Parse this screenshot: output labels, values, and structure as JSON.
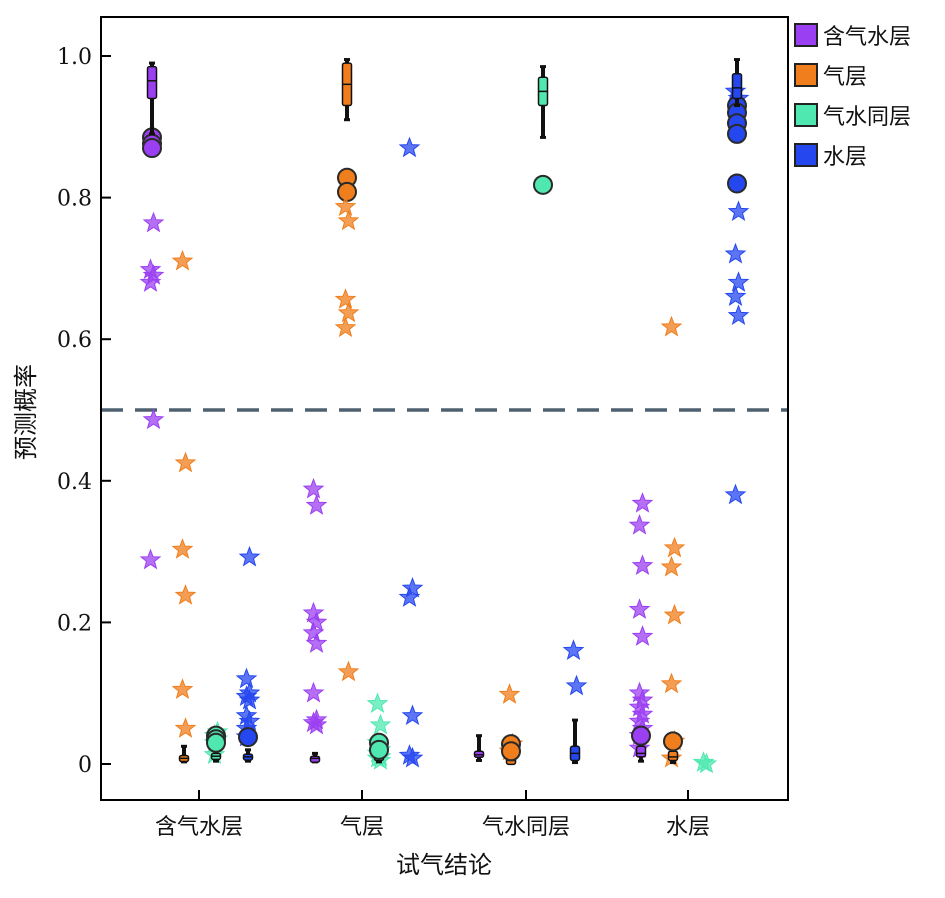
{
  "chart_data": {
    "type": "box",
    "xlabel": "试气结论",
    "ylabel": "预测概率",
    "categories": [
      "含气水层",
      "气层",
      "气水同层",
      "水层"
    ],
    "ylim": [
      -0.05,
      1.055
    ],
    "yticks": [
      {
        "value": 0,
        "label": "0"
      },
      {
        "value": 0.2,
        "label": "0.2"
      },
      {
        "value": 0.4,
        "label": "0.4"
      },
      {
        "value": 0.6,
        "label": "0.6"
      },
      {
        "value": 0.8,
        "label": "0.8"
      },
      {
        "value": 1.0,
        "label": "1.0"
      }
    ],
    "threshold": 0.5,
    "grid": false,
    "legend_position": "outside-top-right",
    "series": [
      {
        "name": "含气水层",
        "color": "#9b3ff2"
      },
      {
        "name": "气层",
        "color": "#f07e1c"
      },
      {
        "name": "气水同层",
        "color": "#4fe8b0"
      },
      {
        "name": "水层",
        "color": "#2547f0"
      }
    ],
    "boxes": [
      {
        "category": 0,
        "series": 0,
        "q1": 0.94,
        "median": 0.965,
        "q3": 0.985,
        "whislo": 0.89,
        "whishi": 0.99,
        "fliers": [
          0.885,
          0.876,
          0.87,
          0.764,
          0.698,
          0.69,
          0.68,
          0.486,
          0.288
        ]
      },
      {
        "category": 0,
        "series": 1,
        "q1": 0.005,
        "median": 0.008,
        "q3": 0.012,
        "whislo": 0.003,
        "whishi": 0.025,
        "fliers": [
          0.71,
          0.425,
          0.303,
          0.238,
          0.105,
          0.05
        ]
      },
      {
        "category": 0,
        "series": 2,
        "q1": 0.008,
        "median": 0.011,
        "q3": 0.015,
        "whislo": 0.004,
        "whishi": 0.02,
        "fliers": [
          0.013,
          0.045,
          0.04,
          0.035,
          0.03
        ]
      },
      {
        "category": 0,
        "series": 3,
        "q1": 0.007,
        "median": 0.01,
        "q3": 0.014,
        "whislo": 0.004,
        "whishi": 0.02,
        "fliers": [
          0.038,
          0.292,
          0.12,
          0.1,
          0.095,
          0.09,
          0.068,
          0.06,
          0.05
        ]
      },
      {
        "category": 1,
        "series": 0,
        "q1": 0.005,
        "median": 0.008,
        "q3": 0.011,
        "whislo": 0.003,
        "whishi": 0.015,
        "fliers": [
          0.388,
          0.365,
          0.213,
          0.2,
          0.185,
          0.17,
          0.1,
          0.062,
          0.058,
          0.055
        ]
      },
      {
        "category": 1,
        "series": 1,
        "q1": 0.93,
        "median": 0.96,
        "q3": 0.99,
        "whislo": 0.91,
        "whishi": 0.995,
        "fliers": [
          0.828,
          0.808,
          0.787,
          0.767,
          0.656,
          0.637,
          0.616,
          0.13
        ]
      },
      {
        "category": 1,
        "series": 2,
        "q1": 0.005,
        "median": 0.01,
        "q3": 0.015,
        "whislo": 0.003,
        "whishi": 0.02,
        "fliers": [
          0.085,
          0.055,
          0.03,
          0.02,
          0.015,
          0.01,
          0.008,
          0.005
        ]
      },
      {
        "category": 1,
        "series": 3,
        "q1": null,
        "median": null,
        "q3": null,
        "whislo": null,
        "whishi": null,
        "fliers": [
          0.87,
          0.248,
          0.235,
          0.068,
          0.012,
          0.008
        ]
      },
      {
        "category": 2,
        "series": 0,
        "q1": 0.01,
        "median": 0.013,
        "q3": 0.018,
        "whislo": 0.005,
        "whishi": 0.04,
        "fliers": []
      },
      {
        "category": 2,
        "series": 1,
        "q1": 0.003,
        "median": 0.005,
        "q3": 0.008,
        "whislo": 0.002,
        "whishi": 0.01,
        "fliers": [
          0.098,
          0.028,
          0.018
        ]
      },
      {
        "category": 2,
        "series": 2,
        "q1": 0.93,
        "median": 0.95,
        "q3": 0.97,
        "whislo": 0.885,
        "whishi": 0.985,
        "fliers": [
          0.818
        ]
      },
      {
        "category": 2,
        "series": 3,
        "q1": 0.005,
        "median": 0.015,
        "q3": 0.025,
        "whislo": 0.002,
        "whishi": 0.062,
        "fliers": [
          0.16,
          0.11
        ]
      },
      {
        "category": 3,
        "series": 0,
        "q1": 0.01,
        "median": 0.015,
        "q3": 0.025,
        "whislo": 0.004,
        "whishi": 0.04,
        "fliers": [
          0.022,
          0.368,
          0.337,
          0.28,
          0.218,
          0.18,
          0.1,
          0.09,
          0.08,
          0.07,
          0.06,
          0.05,
          0.04
        ]
      },
      {
        "category": 3,
        "series": 1,
        "q1": 0.005,
        "median": 0.01,
        "q3": 0.018,
        "whislo": 0.002,
        "whishi": 0.03,
        "fliers": [
          0.008,
          0.305,
          0.278,
          0.21,
          0.113,
          0.032,
          0.617
        ]
      },
      {
        "category": 3,
        "series": 2,
        "q1": null,
        "median": null,
        "q3": null,
        "whislo": null,
        "whishi": null,
        "fliers": [
          0.002,
          0.0
        ]
      },
      {
        "category": 3,
        "series": 3,
        "q1": 0.94,
        "median": 0.955,
        "q3": 0.975,
        "whislo": 0.93,
        "whishi": 0.995,
        "fliers": [
          0.95,
          0.94,
          0.93,
          0.92,
          0.905,
          0.89,
          0.82,
          0.78,
          0.72,
          0.68,
          0.66,
          0.633,
          0.38
        ]
      }
    ]
  }
}
